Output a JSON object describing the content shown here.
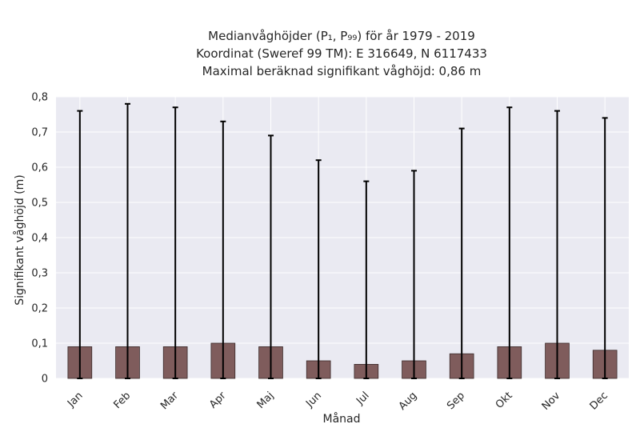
{
  "chart_data": {
    "type": "bar",
    "title_lines": [
      "Medianvåghöjder (P₁, P₉₉) för år 1979 - 2019",
      "Koordinat (Sweref 99 TM): E 316649, N 6117433",
      "Maximal beräknad signifikant våghöjd: 0,86 m"
    ],
    "xlabel": "Månad",
    "ylabel": "Signifikant våghöjd (m)",
    "categories": [
      "Jan",
      "Feb",
      "Mar",
      "Apr",
      "Maj",
      "Jun",
      "Jul",
      "Aug",
      "Sep",
      "Okt",
      "Nov",
      "Dec"
    ],
    "values": [
      0.09,
      0.09,
      0.09,
      0.1,
      0.09,
      0.05,
      0.04,
      0.05,
      0.07,
      0.09,
      0.1,
      0.08
    ],
    "error_low": [
      0,
      0,
      0,
      0,
      0,
      0,
      0,
      0,
      0,
      0,
      0,
      0
    ],
    "error_high": [
      0.76,
      0.78,
      0.77,
      0.73,
      0.69,
      0.62,
      0.56,
      0.59,
      0.71,
      0.77,
      0.76,
      0.74
    ],
    "ylim": [
      0,
      0.8
    ],
    "yticks": [
      0,
      0.1,
      0.2,
      0.3,
      0.4,
      0.5,
      0.6,
      0.7,
      0.8
    ],
    "ytick_labels": [
      "0",
      "0,1",
      "0,2",
      "0,3",
      "0,4",
      "0,5",
      "0,6",
      "0,7",
      "0,8"
    ],
    "grid": true,
    "colors": {
      "bar": "#7f5c5c",
      "bar_edge": "#3a2a2a",
      "errorbar": "#000000",
      "background": "#eaeaf2",
      "grid": "#ffffff"
    }
  }
}
